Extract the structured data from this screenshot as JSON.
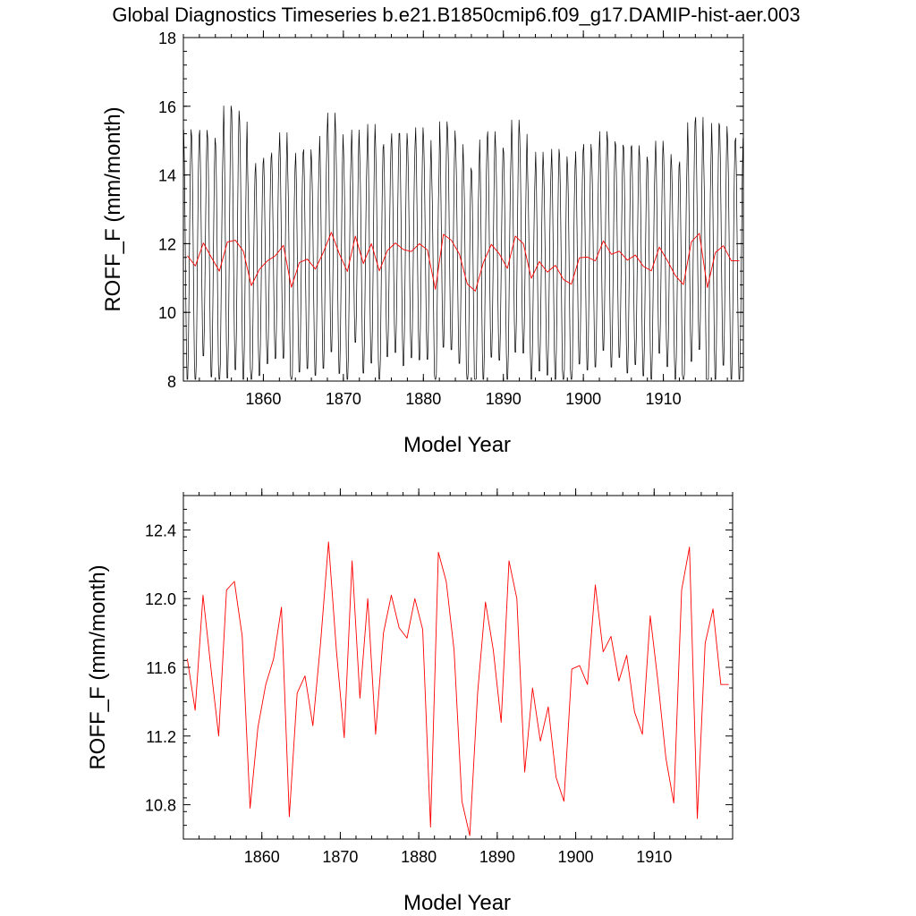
{
  "title": "Global Diagnostics Timeseries b.e21.B1850cmip6.f09_g17.DAMIP-hist-aer.003",
  "colors": {
    "monthly": "#000000",
    "annual": "#ff0000",
    "axes": "#000000",
    "background": "#ffffff"
  },
  "chart_data": [
    {
      "type": "line",
      "xlabel": "Model Year",
      "ylabel": "ROFF_F (mm/month)",
      "xlim": [
        1850,
        1920
      ],
      "ylim": [
        8,
        18
      ],
      "xticks": [
        1860,
        1870,
        1880,
        1890,
        1900,
        1910
      ],
      "yticks": [
        8,
        10,
        12,
        14,
        16,
        18
      ],
      "ytick_decimals": 0,
      "grid": false,
      "series": [
        {
          "kind": "monthly",
          "annual_amplitude": [
            3.8,
            3.9,
            3.4,
            3.6,
            3.8,
            4.1,
            3.9,
            3.9,
            3.4,
            3.2,
            3.1,
            3.1,
            3.4,
            3.6,
            3.3,
            3.3,
            3.2,
            3.5,
            3.6,
            3.6,
            3.5,
            3.2,
            3.3,
            3.6,
            3.7,
            3.2,
            3.3,
            3.5,
            3.2,
            3.5,
            3.3,
            3.5,
            3.4,
            3.3,
            3.3,
            3.5,
            3.6,
            3.7,
            3.4,
            3.2,
            3.5,
            3.5,
            3.3,
            3.1,
            3.3,
            3.1,
            3.5,
            3.7,
            3.5,
            3.2,
            3.4,
            3.2,
            3.3,
            3.4,
            3.2,
            3.4,
            3.3,
            3.3,
            3.3,
            3.2,
            3.2,
            3.3,
            3.7,
            3.6,
            3.5,
            3.9,
            3.9,
            3.6,
            3.6,
            3.7
          ]
        },
        {
          "kind": "annual",
          "x": [
            1850.5,
            1851.5,
            1852.5,
            1853.5,
            1854.5,
            1855.5,
            1856.5,
            1857.5,
            1858.5,
            1859.5,
            1860.5,
            1861.5,
            1862.5,
            1863.5,
            1864.5,
            1865.5,
            1866.5,
            1867.5,
            1868.5,
            1869.5,
            1870.5,
            1871.5,
            1872.5,
            1873.5,
            1874.5,
            1875.5,
            1876.5,
            1877.5,
            1878.5,
            1879.5,
            1880.5,
            1881.5,
            1882.5,
            1883.5,
            1884.5,
            1885.5,
            1886.5,
            1887.5,
            1888.5,
            1889.5,
            1890.5,
            1891.5,
            1892.5,
            1893.5,
            1894.5,
            1895.5,
            1896.5,
            1897.5,
            1898.5,
            1899.5,
            1900.5,
            1901.5,
            1902.5,
            1903.5,
            1904.5,
            1905.5,
            1906.5,
            1907.5,
            1908.5,
            1909.5,
            1910.5,
            1911.5,
            1912.5,
            1913.5,
            1914.5,
            1915.5,
            1916.5,
            1917.5,
            1918.5,
            1919.5
          ],
          "values": [
            11.65,
            11.35,
            12.02,
            11.6,
            11.2,
            12.05,
            12.1,
            11.78,
            10.78,
            11.25,
            11.5,
            11.65,
            11.95,
            10.73,
            11.45,
            11.55,
            11.26,
            11.75,
            12.33,
            11.7,
            11.19,
            12.22,
            11.42,
            12.0,
            11.21,
            11.8,
            12.02,
            11.83,
            11.77,
            12.0,
            11.82,
            10.67,
            12.27,
            12.1,
            11.7,
            10.82,
            10.62,
            11.45,
            11.98,
            11.7,
            11.28,
            12.22,
            12.0,
            10.99,
            11.48,
            11.17,
            11.37,
            10.96,
            10.82,
            11.59,
            11.61,
            11.5,
            12.08,
            11.69,
            11.78,
            11.52,
            11.67,
            11.34,
            11.21,
            11.9,
            11.51,
            11.07,
            10.81,
            12.05,
            12.3,
            10.72,
            11.74,
            11.94,
            11.5,
            11.5
          ]
        }
      ]
    },
    {
      "type": "line",
      "xlabel": "Model Year",
      "ylabel": "ROFF_F (mm/month)",
      "xlim": [
        1850,
        1920
      ],
      "ylim": [
        10.6,
        12.6
      ],
      "xticks": [
        1860,
        1870,
        1880,
        1890,
        1900,
        1910
      ],
      "yticks": [
        10.8,
        11.2,
        11.6,
        12.0,
        12.4
      ],
      "ytick_decimals": 1,
      "grid": false,
      "series_ref": "annual"
    }
  ]
}
